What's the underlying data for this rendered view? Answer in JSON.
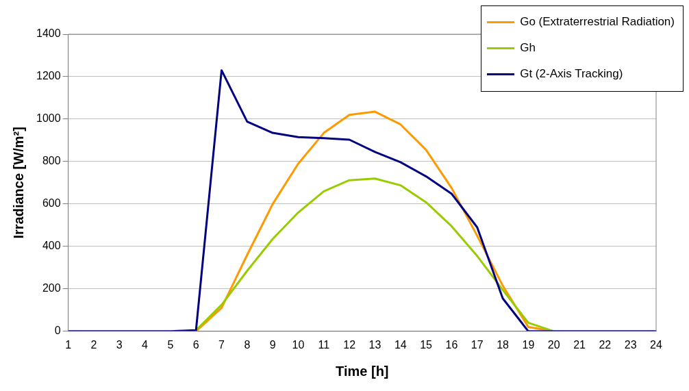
{
  "chart_data": {
    "type": "line",
    "xlabel": "Time [h]",
    "ylabel": "Irradiance [W/m²]",
    "x": [
      1,
      2,
      3,
      4,
      5,
      6,
      7,
      8,
      9,
      10,
      11,
      12,
      13,
      14,
      15,
      16,
      17,
      18,
      19,
      20,
      21,
      22,
      23,
      24
    ],
    "xlim": [
      1,
      24
    ],
    "xticks": [
      1,
      2,
      3,
      4,
      5,
      6,
      7,
      8,
      9,
      10,
      11,
      12,
      13,
      14,
      15,
      16,
      17,
      18,
      19,
      20,
      21,
      22,
      23,
      24
    ],
    "ylim": [
      0,
      1400
    ],
    "yticks": [
      0,
      200,
      400,
      600,
      800,
      1000,
      1200,
      1400
    ],
    "grid": "y",
    "legend": "top right",
    "marker": "none",
    "line_style": "solid",
    "series": [
      {
        "name": "Go (Extraterrestrial Radiation)",
        "color": "#ff9900",
        "values": [
          null,
          null,
          null,
          null,
          null,
          0,
          110,
          360,
          600,
          790,
          935,
          1020,
          1035,
          975,
          855,
          675,
          450,
          215,
          20,
          0,
          null,
          null,
          null,
          null
        ]
      },
      {
        "name": "Gh",
        "color": "#99cc00",
        "values": [
          null,
          null,
          null,
          null,
          null,
          5,
          125,
          285,
          435,
          560,
          660,
          712,
          720,
          688,
          608,
          495,
          355,
          195,
          40,
          0,
          null,
          null,
          null,
          null
        ]
      },
      {
        "name": "Gt (2-Axis Tracking)",
        "color": "#000080",
        "values": [
          0,
          0,
          0,
          0,
          0,
          5,
          1230,
          988,
          935,
          915,
          910,
          903,
          845,
          797,
          730,
          648,
          490,
          155,
          0,
          0,
          0,
          0,
          0,
          0
        ]
      }
    ]
  }
}
